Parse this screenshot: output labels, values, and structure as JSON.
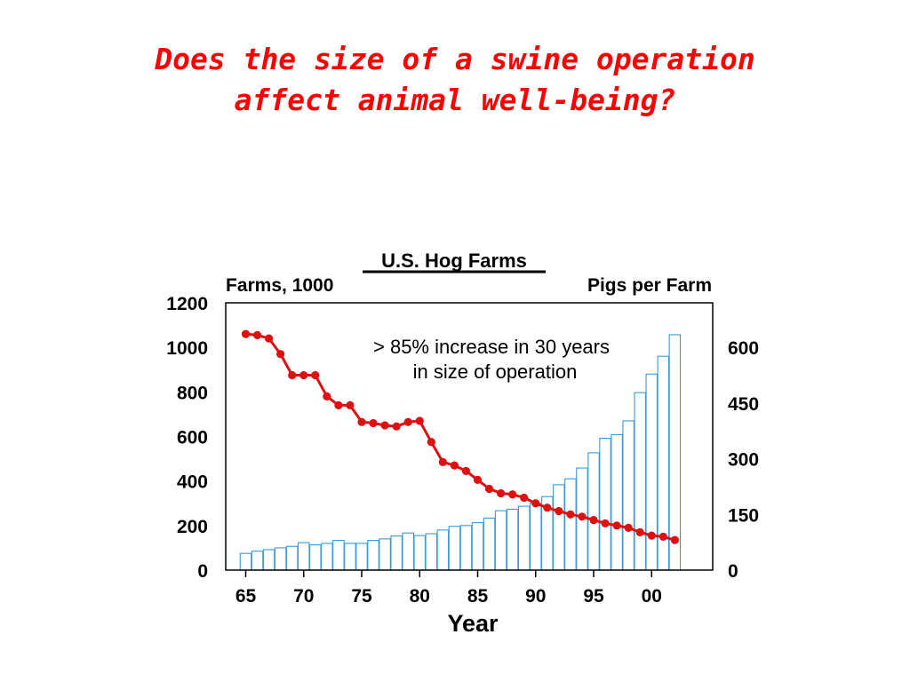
{
  "slide": {
    "title_line1": "Does the size of a swine operation",
    "title_line2": "affect animal well-being?"
  },
  "colors": {
    "title": "#ff0000",
    "bars": "#3a9ad9",
    "line": "#dd1111"
  },
  "chart_data": {
    "type": "bar+line",
    "title": "U.S. Hog Farms",
    "xlabel": "Year",
    "ylabel_left": "Farms, 1000",
    "ylabel_right": "Pigs per Farm",
    "annotation_line1": "> 85% increase in 30 years",
    "annotation_line2": "in size of operation",
    "x": [
      1965,
      1966,
      1967,
      1968,
      1969,
      1970,
      1971,
      1972,
      1973,
      1974,
      1975,
      1976,
      1977,
      1978,
      1979,
      1980,
      1981,
      1982,
      1983,
      1984,
      1985,
      1986,
      1987,
      1988,
      1989,
      1990,
      1991,
      1992,
      1993,
      1994,
      1995,
      1996,
      1997,
      1998,
      1999,
      2000,
      2001,
      2002
    ],
    "x_tick_values": [
      1965,
      1970,
      1975,
      1980,
      1985,
      1990,
      1995,
      2000
    ],
    "x_tick_labels": [
      "65",
      "70",
      "75",
      "80",
      "85",
      "90",
      "95",
      "00"
    ],
    "ylim_left": [
      0,
      1200
    ],
    "yticks_left": [
      0,
      200,
      400,
      600,
      800,
      1000,
      1200
    ],
    "ylim_right": [
      0,
      720
    ],
    "yticks_right": [
      0,
      150,
      300,
      450,
      600
    ],
    "series": [
      {
        "name": "Pigs per Farm",
        "type": "bar",
        "axis": "right",
        "values": [
          45,
          51,
          55,
          60,
          64,
          74,
          68,
          72,
          80,
          72,
          72,
          80,
          84,
          92,
          100,
          93,
          98,
          108,
          118,
          120,
          128,
          140,
          160,
          164,
          172,
          180,
          198,
          230,
          246,
          275,
          316,
          355,
          365,
          402,
          478,
          528,
          576,
          634
        ]
      },
      {
        "name": "Farms, 1000",
        "type": "line",
        "axis": "left",
        "values": [
          1060,
          1055,
          1040,
          970,
          875,
          875,
          875,
          780,
          740,
          740,
          665,
          660,
          650,
          645,
          665,
          670,
          575,
          485,
          470,
          445,
          405,
          365,
          345,
          340,
          325,
          300,
          280,
          265,
          250,
          240,
          225,
          210,
          200,
          190,
          170,
          155,
          150,
          135
        ]
      }
    ]
  }
}
